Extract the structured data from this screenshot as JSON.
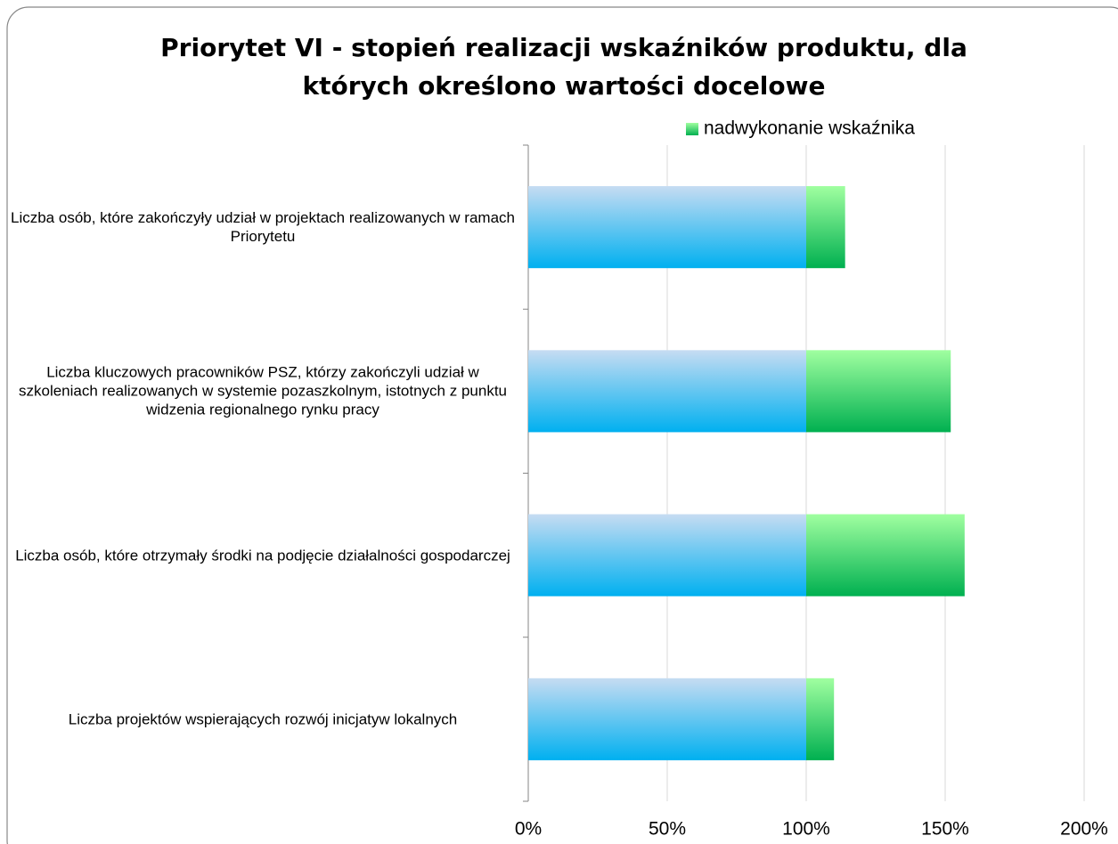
{
  "chart_data": {
    "type": "stacked-bar-horizontal",
    "title": "Priorytet VI - stopień realizacji wskaźników produktu, dla których określono wartości docelowe",
    "categories": [
      "Liczba osób, które zakończyły udział w projektach realizowanych w ramach Priorytetu",
      "Liczba kluczowych pracowników PSZ, którzy zakończyli udział w szkoleniach realizowanych w systemie pozaszkolnym, istotnych z punktu widzenia regionalnego rynku pracy",
      "Liczba osób, które otrzymały środki na podjęcie działalności gospodarczej",
      "Liczba projektów wspierających rozwój inicjatyw lokalnych"
    ],
    "series": [
      {
        "color": "#00b0f0",
        "values": [
          100,
          100,
          100,
          100
        ]
      },
      {
        "name": "nadwykonanie wskaźnika",
        "color": "#00b050",
        "values": [
          14,
          52,
          57,
          10
        ]
      }
    ],
    "xlim": [
      0,
      200
    ],
    "xticks": [
      {
        "value": 0,
        "label": "0%"
      },
      {
        "value": 50,
        "label": "50%"
      },
      {
        "value": 100,
        "label": "100%"
      },
      {
        "value": 150,
        "label": "150%"
      },
      {
        "value": 200,
        "label": "200%"
      }
    ],
    "grid": true,
    "legend": "top-right"
  }
}
